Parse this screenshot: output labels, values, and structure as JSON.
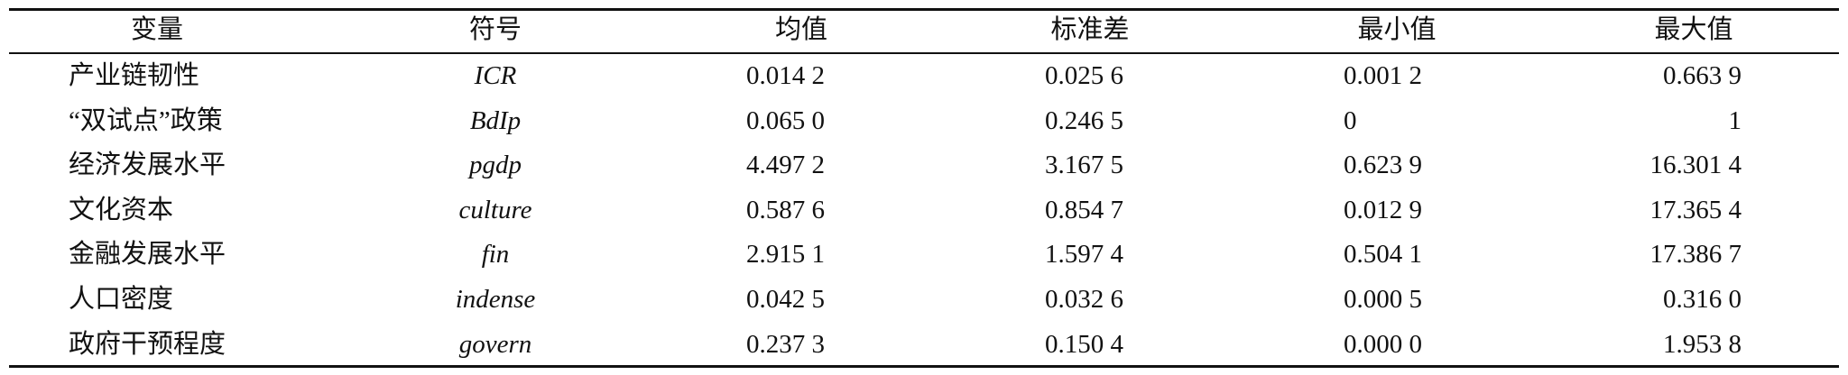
{
  "table": {
    "header": [
      "变量",
      "符号",
      "均值",
      "标准差",
      "最小值",
      "最大值"
    ],
    "rows": [
      [
        "产业链韧性",
        "ICR",
        "0.014 2",
        "0.025 6",
        "0.001 2",
        "0.663 9"
      ],
      [
        "“双试点”政策",
        "BdIp",
        "0.065 0",
        "0.246 5",
        "0",
        "1"
      ],
      [
        "经济发展水平",
        "pgdp",
        "4.497 2",
        "3.167 5",
        "0.623 9",
        "16.301 4"
      ],
      [
        "文化资本",
        "culture",
        "0.587 6",
        "0.854 7",
        "0.012 9",
        "17.365 4"
      ],
      [
        "金融发展水平",
        "fin",
        "2.915 1",
        "1.597 4",
        "0.504 1",
        "17.386 7"
      ],
      [
        "人口密度",
        "indense",
        "0.042 5",
        "0.032 6",
        "0.000 5",
        "0.316 0"
      ],
      [
        "政府干预程度",
        "govern",
        "0.237 3",
        "0.150 4",
        "0.000 0",
        "1.953 8"
      ]
    ]
  }
}
